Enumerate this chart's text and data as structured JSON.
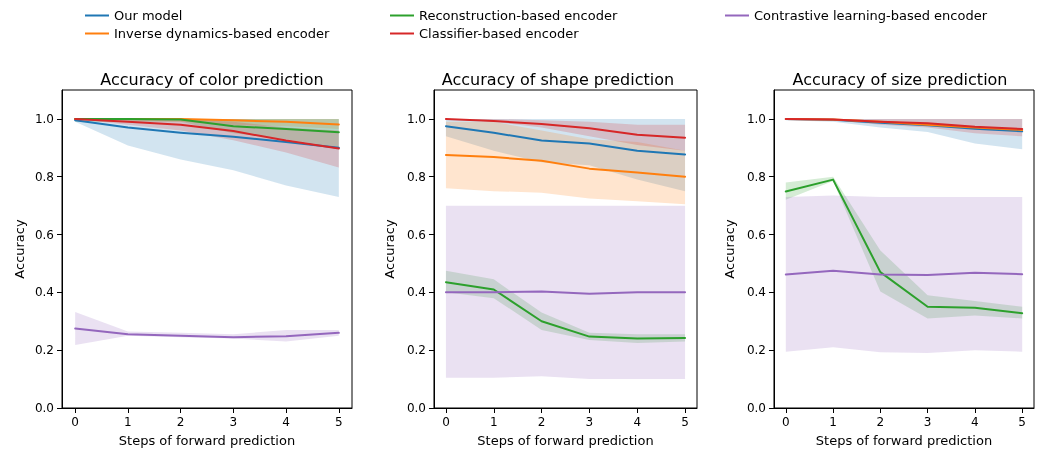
{
  "chart_data": [
    {
      "type": "line",
      "title": "Accuracy of color prediction",
      "xlabel": "Steps of forward prediction",
      "ylabel": "Accuracy",
      "legend": "top",
      "x": [
        0,
        1,
        2,
        3,
        4,
        5
      ],
      "xlim": [
        -0.25,
        5.25
      ],
      "xticks": [
        0,
        1,
        2,
        3,
        4,
        5
      ],
      "ylim": [
        0,
        1.1
      ],
      "yticks": [
        {
          "value": 0,
          "label": "0.0"
        },
        {
          "value": 0.2,
          "label": "0.2"
        },
        {
          "value": 0.4,
          "label": "0.4"
        },
        {
          "value": 0.6,
          "label": "0.6"
        },
        {
          "value": 0.8,
          "label": "0.8"
        },
        {
          "value": 1,
          "label": "1.0"
        }
      ],
      "series": [
        {
          "name": "Our model",
          "color": "#1f77b4",
          "values": [
            0.995,
            0.97,
            0.952,
            0.938,
            0.92,
            0.9
          ],
          "lower": [
            0.99,
            0.908,
            0.86,
            0.822,
            0.77,
            0.73
          ],
          "upper": [
            1.0,
            1.0,
            1.0,
            1.0,
            1.0,
            1.0
          ]
        },
        {
          "name": "Inverse dynamics-based encoder",
          "color": "#ff7f0e",
          "values": [
            1.0,
            1.0,
            1.0,
            0.995,
            0.99,
            0.981
          ],
          "lower": [
            1.0,
            0.995,
            0.99,
            0.98,
            0.975,
            0.965
          ],
          "upper": [
            1.0,
            1.0,
            1.0,
            1.0,
            1.0,
            1.0
          ]
        },
        {
          "name": "Reconstruction-based encoder",
          "color": "#2ca02c",
          "values": [
            1.0,
            1.0,
            0.998,
            0.975,
            0.965,
            0.954
          ],
          "lower": [
            0.99,
            0.99,
            0.99,
            0.95,
            0.93,
            0.9
          ],
          "upper": [
            1.0,
            1.0,
            1.0,
            1.0,
            1.0,
            1.0
          ]
        },
        {
          "name": "Classifier-based encoder",
          "color": "#d62728",
          "values": [
            1.0,
            0.99,
            0.98,
            0.958,
            0.925,
            0.898
          ],
          "lower": [
            1.0,
            0.98,
            0.96,
            0.926,
            0.884,
            0.832
          ],
          "upper": [
            1.0,
            1.0,
            1.0,
            0.99,
            0.97,
            0.96
          ]
        },
        {
          "name": "Contrastive learning-based encoder",
          "color": "#9467bd",
          "values": [
            0.275,
            0.255,
            0.25,
            0.245,
            0.248,
            0.26
          ],
          "lower": [
            0.218,
            0.25,
            0.245,
            0.24,
            0.23,
            0.25
          ],
          "upper": [
            0.332,
            0.265,
            0.26,
            0.255,
            0.27,
            0.27
          ]
        }
      ]
    },
    {
      "type": "line",
      "title": "Accuracy of shape prediction",
      "xlabel": "Steps of forward prediction",
      "ylabel": "Accuracy",
      "x": [
        0,
        1,
        2,
        3,
        4,
        5
      ],
      "xlim": [
        -0.25,
        5.25
      ],
      "xticks": [
        0,
        1,
        2,
        3,
        4,
        5
      ],
      "ylim": [
        0,
        1.1
      ],
      "yticks": [
        {
          "value": 0,
          "label": "0.0"
        },
        {
          "value": 0.2,
          "label": "0.2"
        },
        {
          "value": 0.4,
          "label": "0.4"
        },
        {
          "value": 0.6,
          "label": "0.6"
        },
        {
          "value": 0.8,
          "label": "0.8"
        },
        {
          "value": 1,
          "label": "1.0"
        }
      ],
      "series": [
        {
          "color": "#1f77b4",
          "values": [
            0.975,
            0.952,
            0.925,
            0.915,
            0.89,
            0.877
          ],
          "lower": [
            0.94,
            0.89,
            0.85,
            0.84,
            0.79,
            0.75
          ],
          "upper": [
            1.0,
            1.0,
            1.0,
            1.0,
            1.0,
            1.0
          ]
        },
        {
          "color": "#ff7f0e",
          "values": [
            0.875,
            0.868,
            0.855,
            0.828,
            0.815,
            0.8
          ],
          "lower": [
            0.76,
            0.75,
            0.745,
            0.725,
            0.715,
            0.705
          ],
          "upper": [
            0.99,
            0.99,
            0.96,
            0.93,
            0.92,
            0.89
          ]
        },
        {
          "color": "#2ca02c",
          "values": [
            0.435,
            0.41,
            0.3,
            0.247,
            0.24,
            0.242
          ],
          "lower": [
            0.4,
            0.38,
            0.27,
            0.235,
            0.225,
            0.23
          ],
          "upper": [
            0.475,
            0.445,
            0.33,
            0.26,
            0.255,
            0.255
          ]
        },
        {
          "color": "#d62728",
          "values": [
            1.0,
            0.993,
            0.982,
            0.968,
            0.945,
            0.935
          ],
          "lower": [
            1.0,
            0.99,
            0.97,
            0.94,
            0.91,
            0.89
          ],
          "upper": [
            1.0,
            1.0,
            0.995,
            0.99,
            0.98,
            0.98
          ]
        },
        {
          "color": "#9467bd",
          "values": [
            0.4,
            0.4,
            0.403,
            0.395,
            0.4,
            0.4
          ],
          "lower": [
            0.105,
            0.105,
            0.11,
            0.1,
            0.1,
            0.1
          ],
          "upper": [
            0.7,
            0.7,
            0.7,
            0.7,
            0.7,
            0.7
          ]
        }
      ]
    },
    {
      "type": "line",
      "title": "Accuracy of size prediction",
      "xlabel": "Steps of forward prediction",
      "ylabel": "Accuracy",
      "x": [
        0,
        1,
        2,
        3,
        4,
        5
      ],
      "xlim": [
        -0.25,
        5.25
      ],
      "xticks": [
        0,
        1,
        2,
        3,
        4,
        5
      ],
      "ylim": [
        0,
        1.1
      ],
      "yticks": [
        {
          "value": 0,
          "label": "0.0"
        },
        {
          "value": 0.2,
          "label": "0.2"
        },
        {
          "value": 0.4,
          "label": "0.4"
        },
        {
          "value": 0.6,
          "label": "0.6"
        },
        {
          "value": 0.8,
          "label": "0.8"
        },
        {
          "value": 1,
          "label": "1.0"
        }
      ],
      "series": [
        {
          "color": "#1f77b4",
          "values": [
            1.0,
            0.997,
            0.987,
            0.978,
            0.966,
            0.957
          ],
          "lower": [
            0.995,
            0.99,
            0.97,
            0.955,
            0.915,
            0.895
          ],
          "upper": [
            1.0,
            1.0,
            1.0,
            1.0,
            1.0,
            1.0
          ]
        },
        {
          "color": "#ff7f0e",
          "values": [
            1.0,
            0.998,
            0.99,
            0.98,
            0.97,
            0.962
          ]
        },
        {
          "color": "#2ca02c",
          "values": [
            0.749,
            0.79,
            0.47,
            0.35,
            0.347,
            0.328
          ],
          "lower": [
            0.72,
            0.785,
            0.403,
            0.31,
            0.32,
            0.31
          ],
          "upper": [
            0.78,
            0.8,
            0.545,
            0.39,
            0.37,
            0.35
          ]
        },
        {
          "color": "#d62728",
          "values": [
            1.0,
            0.998,
            0.99,
            0.985,
            0.973,
            0.965
          ],
          "lower": [
            1.0,
            0.995,
            0.98,
            0.97,
            0.95,
            0.94
          ],
          "upper": [
            1.0,
            1.0,
            1.0,
            1.0,
            1.0,
            1.0
          ]
        },
        {
          "color": "#9467bd",
          "values": [
            0.462,
            0.475,
            0.462,
            0.46,
            0.468,
            0.463
          ],
          "lower": [
            0.195,
            0.21,
            0.193,
            0.19,
            0.2,
            0.195
          ],
          "upper": [
            0.73,
            0.735,
            0.73,
            0.73,
            0.73,
            0.73
          ]
        }
      ]
    }
  ]
}
